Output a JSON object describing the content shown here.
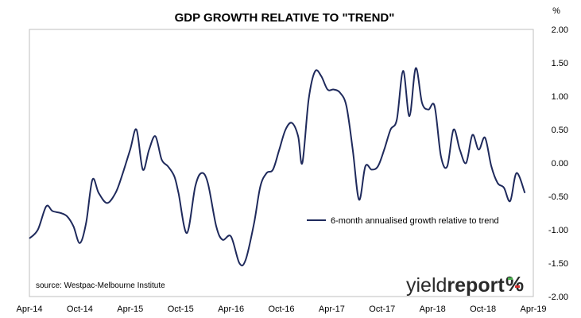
{
  "chart_data": {
    "type": "line",
    "title": "GDP GROWTH RELATIVE TO \"TREND\"",
    "ylabel": "%",
    "ylim": [
      -2.0,
      2.0
    ],
    "yticks": [
      "2.00",
      "1.50",
      "1.00",
      "0.50",
      "0.00",
      "-0.50",
      "-1.00",
      "-1.50",
      "-2.00"
    ],
    "xticks": [
      "Apr-14",
      "Oct-14",
      "Apr-15",
      "Oct-15",
      "Apr-16",
      "Oct-16",
      "Apr-17",
      "Oct-17",
      "Apr-18",
      "Oct-18",
      "Apr-19"
    ],
    "grid": false,
    "legend_position": "center-right",
    "series": [
      {
        "name": "6-month annualised growth relative to trend",
        "color": "#1f2a5c",
        "points": [
          [
            0.0,
            -1.13
          ],
          [
            0.4,
            -1.0
          ],
          [
            0.8,
            -0.65
          ],
          [
            1.1,
            -0.72
          ],
          [
            1.5,
            -0.75
          ],
          [
            1.8,
            -0.8
          ],
          [
            2.1,
            -0.95
          ],
          [
            2.4,
            -1.2
          ],
          [
            2.7,
            -0.9
          ],
          [
            3.0,
            -0.25
          ],
          [
            3.3,
            -0.45
          ],
          [
            3.7,
            -0.6
          ],
          [
            4.1,
            -0.45
          ],
          [
            4.4,
            -0.2
          ],
          [
            4.8,
            0.2
          ],
          [
            5.1,
            0.5
          ],
          [
            5.4,
            -0.1
          ],
          [
            5.7,
            0.2
          ],
          [
            6.0,
            0.4
          ],
          [
            6.3,
            0.05
          ],
          [
            6.6,
            -0.05
          ],
          [
            6.9,
            -0.2
          ],
          [
            7.1,
            -0.45
          ],
          [
            7.5,
            -1.05
          ],
          [
            7.9,
            -0.35
          ],
          [
            8.2,
            -0.15
          ],
          [
            8.5,
            -0.3
          ],
          [
            8.9,
            -0.95
          ],
          [
            9.2,
            -1.15
          ],
          [
            9.6,
            -1.1
          ],
          [
            10.0,
            -1.5
          ],
          [
            10.3,
            -1.45
          ],
          [
            10.7,
            -0.9
          ],
          [
            11.0,
            -0.35
          ],
          [
            11.3,
            -0.15
          ],
          [
            11.6,
            -0.1
          ],
          [
            11.9,
            0.2
          ],
          [
            12.2,
            0.5
          ],
          [
            12.5,
            0.6
          ],
          [
            12.8,
            0.4
          ],
          [
            13.0,
            0.0
          ],
          [
            13.3,
            0.95
          ],
          [
            13.6,
            1.37
          ],
          [
            13.9,
            1.3
          ],
          [
            14.2,
            1.1
          ],
          [
            14.5,
            1.1
          ],
          [
            14.8,
            1.05
          ],
          [
            15.1,
            0.85
          ],
          [
            15.4,
            0.2
          ],
          [
            15.7,
            -0.55
          ],
          [
            16.0,
            -0.05
          ],
          [
            16.3,
            -0.1
          ],
          [
            16.6,
            -0.05
          ],
          [
            16.9,
            0.2
          ],
          [
            17.2,
            0.5
          ],
          [
            17.5,
            0.65
          ],
          [
            17.8,
            1.38
          ],
          [
            18.1,
            0.7
          ],
          [
            18.4,
            1.42
          ],
          [
            18.7,
            0.9
          ],
          [
            19.0,
            0.8
          ],
          [
            19.3,
            0.85
          ],
          [
            19.6,
            0.1
          ],
          [
            19.9,
            -0.05
          ],
          [
            20.2,
            0.5
          ],
          [
            20.5,
            0.2
          ],
          [
            20.8,
            0.0
          ],
          [
            21.1,
            0.42
          ],
          [
            21.4,
            0.2
          ],
          [
            21.7,
            0.38
          ],
          [
            22.0,
            -0.05
          ],
          [
            22.3,
            -0.3
          ],
          [
            22.6,
            -0.37
          ],
          [
            22.9,
            -0.57
          ],
          [
            23.2,
            -0.15
          ],
          [
            23.6,
            -0.45
          ]
        ]
      }
    ]
  },
  "source_note": "source: Westpac-Melbourne Institute",
  "logo": {
    "word_a": "yield",
    "word_b": "report",
    "mark": "%"
  }
}
